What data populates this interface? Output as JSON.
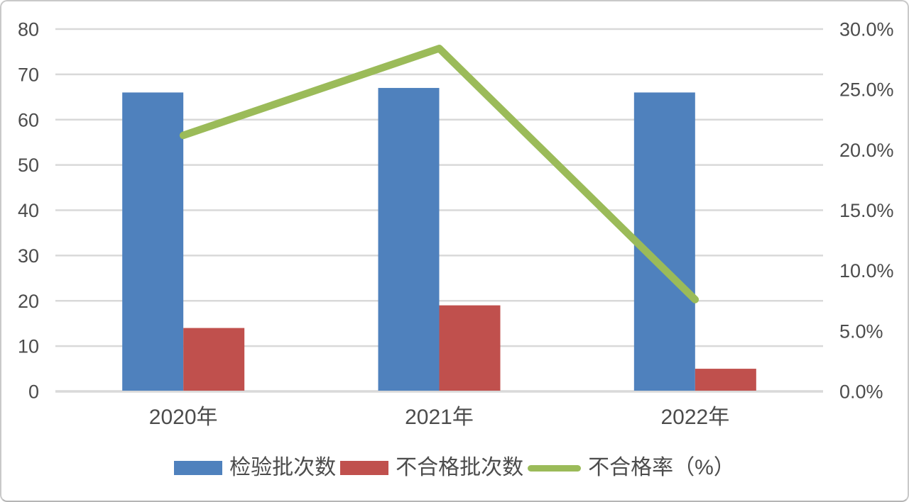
{
  "window": {
    "background": "#FFFFFF",
    "border_color": "#C9C9C9"
  },
  "chart_data": {
    "type": "combo",
    "title": "",
    "categories": [
      "2020年",
      "2021年",
      "2022年"
    ],
    "series": [
      {
        "name": "检验批次数",
        "type": "bar",
        "axis": "left",
        "color": "#4F81BD",
        "values": [
          66,
          67,
          66
        ]
      },
      {
        "name": "不合格批次数",
        "type": "bar",
        "axis": "left",
        "color": "#C0504D",
        "values": [
          14,
          19,
          5
        ]
      },
      {
        "name": "不合格率（%）",
        "type": "line",
        "axis": "right",
        "color": "#9BBB59",
        "values": [
          21.2,
          28.4,
          7.6
        ],
        "unit": "%"
      }
    ],
    "left_axis": {
      "min": 0,
      "max": 80,
      "step": 10,
      "tick_labels": [
        "0",
        "10",
        "20",
        "30",
        "40",
        "50",
        "60",
        "70",
        "80"
      ]
    },
    "right_axis": {
      "min": 0,
      "max": 30,
      "step": 5,
      "tick_labels": [
        "0.0%",
        "5.0%",
        "10.0%",
        "15.0%",
        "20.0%",
        "25.0%",
        "30.0%"
      ]
    },
    "grid": "horizontal",
    "legend_position": "bottom",
    "styles": {
      "grid_color": "#D9D9D9",
      "axis_line_color": "#D9D9D9",
      "label_color": "#4C4C4C"
    }
  }
}
